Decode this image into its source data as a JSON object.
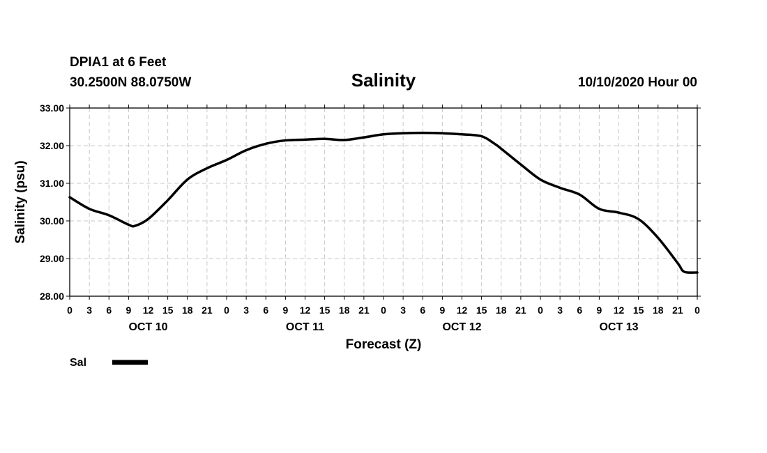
{
  "header": {
    "station_line": "DPIA1 at 6 Feet",
    "coords_line": "30.2500N 88.0750W",
    "title": "Salinity",
    "run_time": "10/10/2020 Hour 00"
  },
  "legend": {
    "label": "Sal",
    "color": "#000000"
  },
  "chart_data": {
    "type": "line",
    "title": "Salinity",
    "xlabel": "Forecast (Z)",
    "ylabel": "Salinity (psu)",
    "ylim": [
      28.0,
      33.0
    ],
    "yticks": [
      "28.00",
      "29.00",
      "30.00",
      "31.00",
      "32.00",
      "33.00"
    ],
    "xlim": [
      0,
      96
    ],
    "xticks": [
      "0",
      "3",
      "6",
      "9",
      "12",
      "15",
      "18",
      "21",
      "0",
      "3",
      "6",
      "9",
      "12",
      "15",
      "18",
      "21",
      "0",
      "3",
      "6",
      "9",
      "12",
      "15",
      "18",
      "21",
      "0",
      "3",
      "6",
      "9",
      "12",
      "15",
      "18",
      "21",
      "0"
    ],
    "day_labels": [
      {
        "label": "OCT 10",
        "hour": 12
      },
      {
        "label": "OCT 11",
        "hour": 36
      },
      {
        "label": "OCT 12",
        "hour": 60
      },
      {
        "label": "OCT 13",
        "hour": 84
      }
    ],
    "grid": true,
    "legend_position": "bottom-left",
    "series": [
      {
        "name": "Sal",
        "color": "#000000",
        "x": [
          0,
          3,
          6,
          9,
          10,
          12,
          15,
          18,
          21,
          24,
          27,
          30,
          33,
          36,
          39,
          42,
          45,
          48,
          51,
          54,
          57,
          60,
          63,
          65,
          66,
          69,
          72,
          75,
          78,
          81,
          84,
          87,
          90,
          93,
          94,
          96
        ],
        "y": [
          30.63,
          30.32,
          30.15,
          29.9,
          29.87,
          30.05,
          30.55,
          31.1,
          31.4,
          31.62,
          31.88,
          32.05,
          32.14,
          32.16,
          32.18,
          32.15,
          32.22,
          32.3,
          32.33,
          32.34,
          32.33,
          32.3,
          32.25,
          32.05,
          31.92,
          31.5,
          31.1,
          30.88,
          30.7,
          30.32,
          30.22,
          30.05,
          29.55,
          28.88,
          28.65,
          28.63
        ]
      }
    ]
  }
}
